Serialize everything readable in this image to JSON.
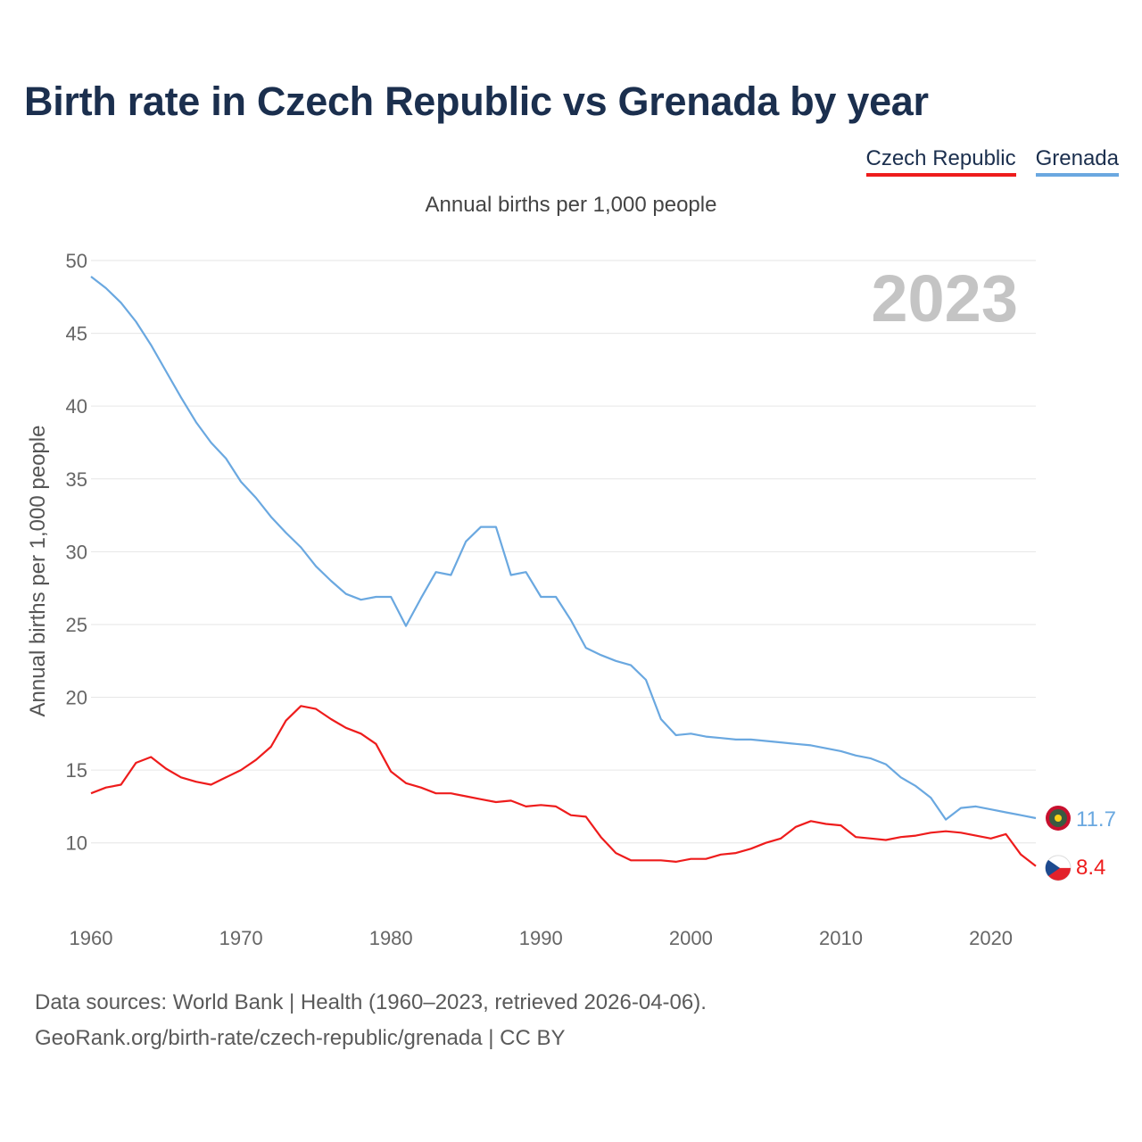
{
  "title": "Birth rate in Czech Republic vs Grenada by year",
  "legend": [
    {
      "label": "Czech Republic",
      "color": "#ee1c1c"
    },
    {
      "label": "Grenada",
      "color": "#6aa8e0"
    }
  ],
  "subtitle": "Annual births per 1,000 people",
  "footer": {
    "line1": "Data sources: World Bank | Health (1960–2023, retrieved 2026-04-06).",
    "line2": "GeoRank.org/birth-rate/czech-republic/grenada | CC BY"
  },
  "chart_data": {
    "type": "line",
    "title": "Birth rate in Czech Republic vs Grenada by year",
    "ylabel": "Annual births per 1,000 people",
    "xlabel": "",
    "year_label": "2023",
    "ylim": [
      6,
      50
    ],
    "xlim": [
      1960,
      2023
    ],
    "yticks": [
      10,
      15,
      20,
      25,
      30,
      35,
      40,
      45,
      50
    ],
    "xticks": [
      1960,
      1970,
      1980,
      1990,
      2000,
      2010,
      2020
    ],
    "grid": true,
    "legend_position": "top-right",
    "x": [
      1960,
      1961,
      1962,
      1963,
      1964,
      1965,
      1966,
      1967,
      1968,
      1969,
      1970,
      1971,
      1972,
      1973,
      1974,
      1975,
      1976,
      1977,
      1978,
      1979,
      1980,
      1981,
      1982,
      1983,
      1984,
      1985,
      1986,
      1987,
      1988,
      1989,
      1990,
      1991,
      1992,
      1993,
      1994,
      1995,
      1996,
      1997,
      1998,
      1999,
      2000,
      2001,
      2002,
      2003,
      2004,
      2005,
      2006,
      2007,
      2008,
      2009,
      2010,
      2011,
      2012,
      2013,
      2014,
      2015,
      2016,
      2017,
      2018,
      2019,
      2020,
      2021,
      2022,
      2023
    ],
    "series": [
      {
        "name": "Czech Republic",
        "color": "#ee1c1c",
        "end_label": "8.4",
        "values": [
          13.4,
          13.8,
          14.0,
          15.5,
          15.9,
          15.1,
          14.5,
          14.2,
          14.0,
          14.5,
          15.0,
          15.7,
          16.6,
          18.4,
          19.4,
          19.2,
          18.5,
          17.9,
          17.5,
          16.8,
          14.9,
          14.1,
          13.8,
          13.4,
          13.4,
          13.2,
          13.0,
          12.8,
          12.9,
          12.5,
          12.6,
          12.5,
          11.9,
          11.8,
          10.4,
          9.3,
          8.8,
          8.8,
          8.8,
          8.7,
          8.9,
          8.9,
          9.2,
          9.3,
          9.6,
          10.0,
          10.3,
          11.1,
          11.5,
          11.3,
          11.2,
          10.4,
          10.3,
          10.2,
          10.4,
          10.5,
          10.7,
          10.8,
          10.7,
          10.5,
          10.3,
          10.6,
          9.2,
          8.4
        ]
      },
      {
        "name": "Grenada",
        "color": "#6aa8e0",
        "end_label": "11.7",
        "values": [
          48.9,
          48.1,
          47.1,
          45.8,
          44.2,
          42.4,
          40.6,
          38.9,
          37.5,
          36.4,
          34.8,
          33.7,
          32.4,
          31.3,
          30.3,
          29.0,
          28.0,
          27.1,
          26.7,
          26.9,
          26.9,
          24.9,
          26.8,
          28.6,
          28.4,
          30.7,
          31.7,
          31.7,
          28.4,
          28.6,
          26.9,
          26.9,
          25.3,
          23.4,
          22.9,
          22.5,
          22.2,
          21.2,
          18.5,
          17.4,
          17.5,
          17.3,
          17.2,
          17.1,
          17.1,
          17.0,
          16.9,
          16.8,
          16.7,
          16.5,
          16.3,
          16.0,
          15.8,
          15.4,
          14.5,
          13.9,
          13.1,
          11.6,
          12.4,
          12.5,
          12.3,
          12.1,
          11.9,
          11.7
        ]
      }
    ]
  }
}
